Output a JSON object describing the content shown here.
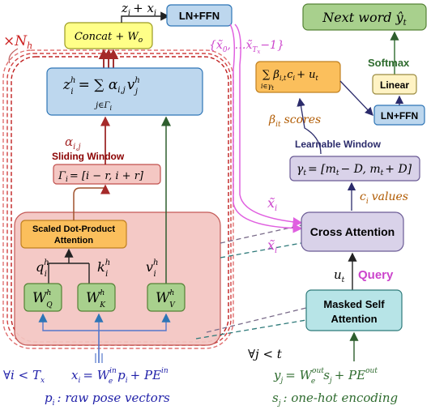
{
  "colors": {
    "encoder_fill": "#f4c7c3",
    "encoder_stroke": "#c0504d",
    "green_fill": "#a8d08d",
    "green_stroke": "#548235",
    "blue_fill": "#bdd7ee",
    "blue_stroke": "#2e75b6",
    "yellow_fill": "#ffff88",
    "orange_fill": "#fbbf5c",
    "lavender_fill": "#d9d2e9",
    "teal_fill": "#b7e4e7",
    "violet": "#cc44cc",
    "darkred": "#8b0000",
    "blue_text": "#1f1fa8",
    "green_text": "#2e6b2e",
    "orange_text": "#b05a00"
  },
  "encoder": {
    "repeat": "×N",
    "repeat_sub": "h",
    "concat": "Concat + W",
    "concat_sub": "o",
    "out_expr": "z",
    "out_expr_sub": "i",
    "out_expr_rest": "+ x",
    "out_expr_rest_sub": "i",
    "z_head": "z",
    "z_head_sup": "h",
    "z_head_sub": "i",
    "z_sum": "= ∑ α",
    "z_sum_sub": "i,j",
    "z_v": "v",
    "z_v_sup": "h",
    "z_v_sub": "j",
    "z_sum_under": "j∈Γ",
    "z_sum_under_sub": "i",
    "alpha": "α",
    "alpha_sub": "i,j",
    "sliding_window": "Sliding Window",
    "gamma": "Γ",
    "gamma_sub": "i",
    "gamma_expr": "= [i − r, i + r]",
    "sdpa_line1": "Scaled Dot-Product",
    "sdpa_line2": "Attention",
    "q": "q",
    "k": "k",
    "v": "v",
    "W": "W",
    "WQ_sub": "Q",
    "WK_sub": "K",
    "WV_sub": "V",
    "h": "h",
    "i": "i",
    "cond": "∀i < T",
    "cond_sub": "x",
    "x_eq": "x",
    "x_eq_sub": "i",
    "x_eq_rest": "= W",
    "x_eq_sup": "in",
    "x_eq_sub2": "e",
    "x_eq_tail": "p",
    "x_eq_tail_sub": "i",
    "x_eq_pe": "+ PE",
    "x_eq_pe_sup": "in",
    "p_label": "p",
    "p_label_sub": "i",
    "p_label_rest": ": raw pose vectors"
  },
  "decoder": {
    "seq": "{x̃",
    "seq_sub": "0",
    "seq_mid": ", …x̃",
    "seq_sub2": "T",
    "seq_sub2_sub": "x",
    "seq_end": "−1}",
    "next_word": "Next word ŷ",
    "next_word_sub": "t",
    "softmax": "Softmax",
    "linear": "Linear",
    "ln_ffn": "LN+FFN",
    "beta_sum": "∑ β",
    "beta_sum_sub": "i,t",
    "beta_c": "c",
    "beta_c_sub": "i",
    "beta_u": "+ u",
    "beta_u_sub": "t",
    "beta_under": "i∈γ",
    "beta_under_sub": "t",
    "beta_scores": "β",
    "beta_scores_sub": "it",
    "beta_scores_rest": "scores",
    "learnable_window": "Learnable Window",
    "gamma_t": "γ",
    "gamma_t_sub": "t",
    "gamma_t_expr": "= [m",
    "gamma_t_expr_sub": "t",
    "gamma_t_expr_mid": "− D, m",
    "gamma_t_expr_sub2": "t",
    "gamma_t_expr_end": "+ D]",
    "c_values": "c",
    "c_values_sub": "i",
    "c_values_rest": "values",
    "xtilde": "x̃",
    "xtilde_sub": "i",
    "cross_attention": "Cross Attention",
    "u_t": "u",
    "u_t_sub": "t",
    "query": "Query",
    "masked_line1": "Masked Self",
    "masked_line2": "Attention",
    "cond": "∀j < t",
    "y_eq": "y",
    "y_eq_sub": "j",
    "y_eq_rest": "= W",
    "y_eq_sup": "out",
    "y_eq_sub2": "e",
    "y_eq_tail": "s",
    "y_eq_tail_sub": "j",
    "y_eq_pe": "+ PE",
    "y_eq_pe_sup": "out",
    "s_label": "s",
    "s_label_sub": "j",
    "s_label_rest": ": one-hot encoding"
  }
}
